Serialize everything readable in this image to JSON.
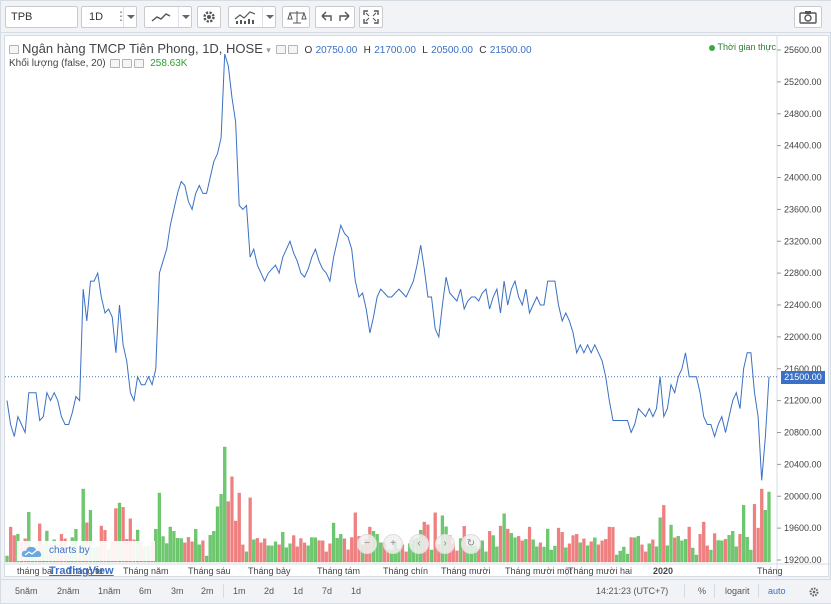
{
  "toolbar": {
    "symbol": "TPB",
    "interval": "1D"
  },
  "legend": {
    "title": "Ngân hàng TMCP Tiên Phong, 1D, HOSE",
    "open_label": "O",
    "open": "20750.00",
    "high_label": "H",
    "high": "21700.00",
    "low_label": "L",
    "low": "20500.00",
    "close_label": "C",
    "close": "21500.00",
    "volume_label": "Khối lượng (false, 20)",
    "volume_value": "258.63K",
    "realtime": "Thời gian thực"
  },
  "watermark": {
    "prefix": "charts by",
    "brand": "TradingView"
  },
  "chart_data": {
    "type": "line",
    "last_price_label": "21500.00",
    "y_ticks": [
      "25600.00",
      "25200.00",
      "24800.00",
      "24400.00",
      "24000.00",
      "23600.00",
      "23200.00",
      "22800.00",
      "22400.00",
      "22000.00",
      "21600.00",
      "21200.00",
      "20800.00",
      "20400.00",
      "20000.00",
      "19600.00",
      "19200.00"
    ],
    "ylim": [
      19100,
      25750
    ],
    "x_labels": [
      "tháng ba",
      "Tháng tư",
      "Tháng năm",
      "Tháng sáu",
      "Tháng bảy",
      "Tháng tám",
      "Tháng chín",
      "Tháng mười",
      "Tháng mười một",
      "Tháng mười hai",
      "2020",
      "Tháng"
    ],
    "close": [
      21200,
      20900,
      20750,
      21000,
      20900,
      20800,
      21300,
      21300,
      21300,
      20950,
      21000,
      21300,
      21200,
      21300,
      21200,
      21000,
      20900,
      20900,
      21050,
      21250,
      21200,
      22600,
      22200,
      22700,
      22700,
      22800,
      22500,
      22300,
      22350,
      22250,
      21800,
      22400,
      21900,
      21700,
      21300,
      21200,
      21500,
      21400,
      21400,
      21500,
      21400,
      21600,
      22800,
      22950,
      23100,
      23400,
      23600,
      23800,
      23950,
      23900,
      23700,
      23600,
      23800,
      23900,
      23800,
      23800,
      24000,
      24200,
      24300,
      24500,
      25550,
      25400,
      25000,
      24700,
      23650,
      23600,
      23650,
      23000,
      23100,
      22900,
      22800,
      22700,
      22800,
      22850,
      22900,
      22800,
      23000,
      23100,
      23200,
      23050,
      22950,
      22800,
      22750,
      22850,
      23000,
      23100,
      22950,
      22850,
      22800,
      22700,
      23000,
      23200,
      23400,
      23300,
      23250,
      23100,
      22700,
      22500,
      22550,
      22350,
      22050,
      22250,
      22500,
      22600,
      22550,
      22500,
      22500,
      22550,
      22600,
      22550,
      22500,
      22600,
      22700,
      22900,
      23150,
      22850,
      22500,
      22500,
      22100,
      22000,
      22400,
      22750,
      22550,
      22500,
      22450,
      22600,
      22350,
      22450,
      22500,
      22500,
      22450,
      22550,
      22600,
      22350,
      22500,
      22600,
      22300,
      22700,
      22400,
      22600,
      22700,
      22500,
      22400,
      22600,
      22300,
      22400,
      22500,
      22400,
      22400,
      22700,
      22700,
      22700,
      22400,
      22200,
      22300,
      22200,
      22050,
      21800,
      21900,
      21800,
      21900,
      21800,
      21900,
      21800,
      21700,
      21500,
      21200,
      20950,
      20950,
      20950,
      20950,
      20950,
      20800,
      20900,
      21100,
      21050,
      21000,
      21100,
      21000,
      21100,
      21500,
      21000,
      21100,
      21400,
      21300,
      21500,
      21600,
      21800,
      21500,
      21500,
      21500,
      21300,
      21000,
      20900,
      20900,
      20750,
      20900,
      21000,
      20800,
      21000,
      21200,
      21300,
      21100,
      21600,
      21800,
      21800,
      21300,
      21000,
      20200,
      20750,
      21500
    ]
  },
  "bottom": {
    "ranges": [
      "5năm",
      "2năm",
      "1năm",
      "6m",
      "3m",
      "2m",
      "1m",
      "2d",
      "1d",
      "7d",
      "1d"
    ],
    "time": "14:21:23 (UTC+7)",
    "pct": "%",
    "log": "logarit",
    "auto": "auto"
  },
  "colors": {
    "line": "#3b70c4",
    "vol_up": "#6ec96e",
    "vol_down": "#f08080",
    "accent": "#3b70c4"
  }
}
